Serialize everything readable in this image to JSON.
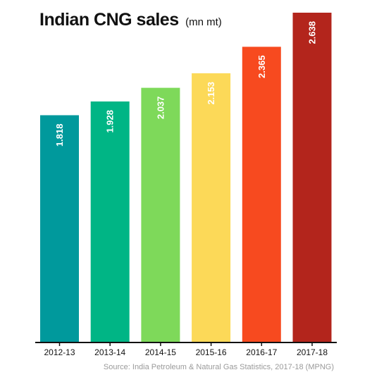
{
  "chart_data": {
    "type": "bar",
    "title": "Indian CNG sales",
    "unit": "(mn mt)",
    "categories": [
      "2012-13",
      "2013-14",
      "2014-15",
      "2015-16",
      "2016-17",
      "2017-18"
    ],
    "values": [
      1.818,
      1.928,
      2.037,
      2.153,
      2.365,
      2.638
    ],
    "value_labels": [
      "1.818",
      "1.928",
      "2.037",
      "2.153",
      "2.365",
      "2.638"
    ],
    "colors": [
      "#00999c",
      "#00b585",
      "#7ed95a",
      "#fcd958",
      "#f74a1f",
      "#b3251c"
    ],
    "ylim": [
      0,
      2.638
    ],
    "grid": false,
    "legend": "none",
    "source": "Source: India Petroleum & Natural Gas Statistics, 2017-18 (MPNG)"
  }
}
